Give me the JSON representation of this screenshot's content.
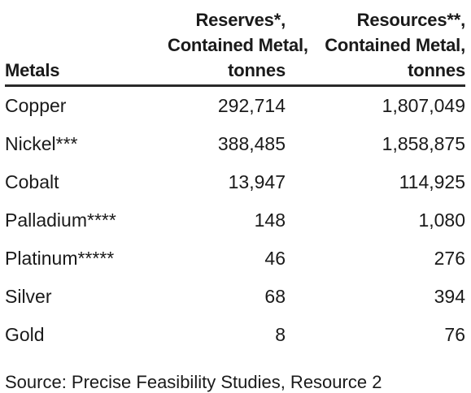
{
  "table": {
    "headers": {
      "metals": "Metals",
      "reserves": [
        "Reserves*,",
        "Contained Metal,",
        "tonnes"
      ],
      "resources": [
        "Resources**,",
        "Contained Metal,",
        "tonnes"
      ]
    },
    "rows": [
      {
        "metal": "Copper",
        "reserves": "292,714",
        "resources": "1,807,049"
      },
      {
        "metal": "Nickel***",
        "reserves": "388,485",
        "resources": "1,858,875"
      },
      {
        "metal": "Cobalt",
        "reserves": "13,947",
        "resources": "114,925"
      },
      {
        "metal": "Palladium****",
        "reserves": "148",
        "resources": "1,080"
      },
      {
        "metal": "Platinum*****",
        "reserves": "46",
        "resources": "276"
      },
      {
        "metal": "Silver",
        "reserves": "68",
        "resources": "394"
      },
      {
        "metal": "Gold",
        "reserves": "8",
        "resources": "76"
      }
    ]
  },
  "footer_text": "Source: Precise Feasibility Studies, Resource 2"
}
